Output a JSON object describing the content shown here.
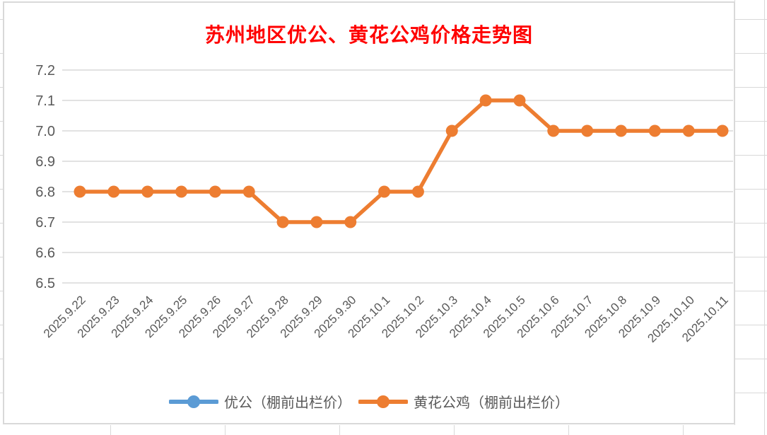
{
  "chart_data": {
    "type": "line",
    "title": "苏州地区优公、黄花公鸡价格走势图",
    "categories": [
      "2025.9.22",
      "2025.9.23",
      "2025.9.24",
      "2025.9.25",
      "2025.9.26",
      "2025.9.27",
      "2025.9.28",
      "2025.9.29",
      "2025.9.30",
      "2025.10.1",
      "2025.10.2",
      "2025.10.3",
      "2025.10.4",
      "2025.10.5",
      "2025.10.6",
      "2025.10.7",
      "2025.10.8",
      "2025.10.9",
      "2025.10.10",
      "2025.10.11"
    ],
    "series": [
      {
        "name": "优公（棚前出栏价）",
        "color": "#5B9BD5",
        "visible_in_plot": false,
        "values": []
      },
      {
        "name": "黄花公鸡（棚前出栏价）",
        "color": "#ED7D31",
        "visible_in_plot": true,
        "values": [
          6.8,
          6.8,
          6.8,
          6.8,
          6.8,
          6.8,
          6.7,
          6.7,
          6.7,
          6.8,
          6.8,
          7.0,
          7.1,
          7.1,
          7.0,
          7.0,
          7.0,
          7.0,
          7.0,
          7.0
        ]
      }
    ],
    "ylim": [
      6.5,
      7.2
    ],
    "y_ticks": [
      "7.2",
      "7.1",
      "7.0",
      "6.9",
      "6.8",
      "6.7",
      "6.6",
      "6.5"
    ],
    "xlabel": "",
    "ylabel": "",
    "grid": true,
    "legend_position": "bottom"
  },
  "colors": {
    "title": "#FF0000",
    "axis_text": "#595959",
    "gridline": "#D9D9D9"
  }
}
